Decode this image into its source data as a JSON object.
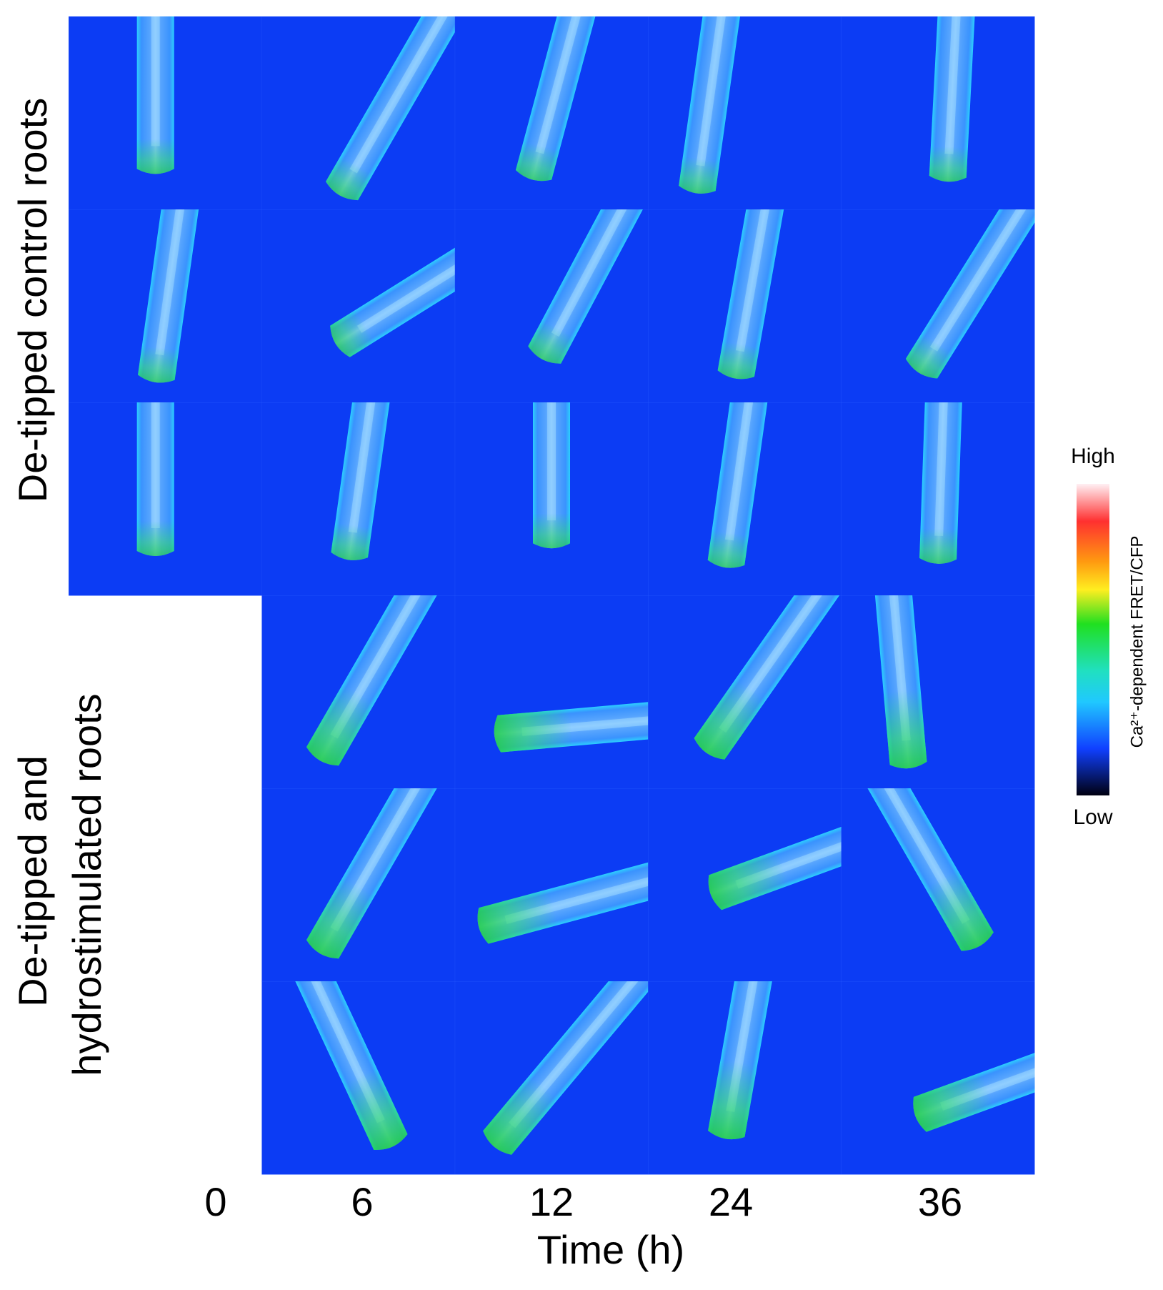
{
  "row_groups": [
    {
      "label": "De-tipped control roots"
    },
    {
      "label_lines": [
        "De-tipped and",
        "hydrostimulated roots"
      ]
    }
  ],
  "time_axis": {
    "ticks": [
      "0",
      "6",
      "12",
      "24",
      "36"
    ],
    "label": "Time (h)"
  },
  "colorbar": {
    "high": "High",
    "low": "Low",
    "label": "Ca²⁺-dependent FRET/CFP"
  }
}
